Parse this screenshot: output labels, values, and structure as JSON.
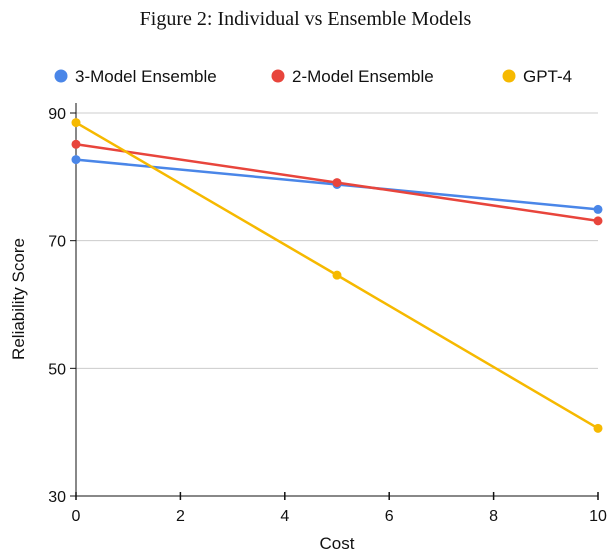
{
  "caption": "Figure 2: Individual vs Ensemble Models",
  "chart_data": {
    "type": "line",
    "title": "",
    "xlabel": "Cost",
    "ylabel": "Reliability Score",
    "x": [
      0,
      5,
      10
    ],
    "xlim": [
      0,
      10
    ],
    "ylim": [
      30,
      90
    ],
    "xticks": [
      0,
      2,
      4,
      6,
      8,
      10
    ],
    "yticks": [
      30,
      50,
      70,
      90
    ],
    "grid": "horizontal",
    "legend_position": "top",
    "series": [
      {
        "name": "3-Model Ensemble",
        "color": "#4a86e8",
        "values": [
          82.7,
          78.8,
          74.9
        ]
      },
      {
        "name": "2-Model Ensemble",
        "color": "#e8453c",
        "values": [
          85.1,
          79.1,
          73.1
        ]
      },
      {
        "name": "GPT-4",
        "color": "#f6b900",
        "values": [
          88.5,
          64.6,
          40.6
        ]
      }
    ]
  }
}
